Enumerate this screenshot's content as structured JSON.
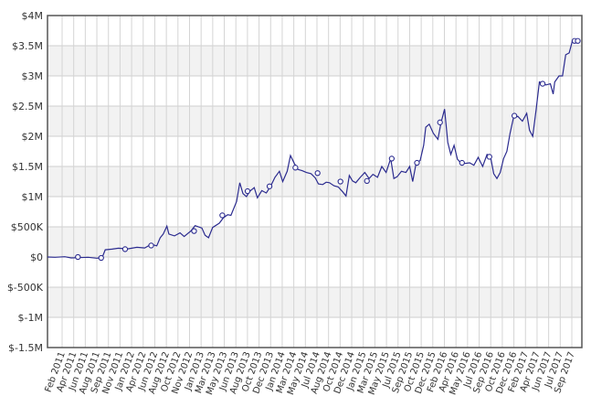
{
  "chart_data": {
    "type": "line",
    "title": "",
    "xlabel": "",
    "ylabel": "",
    "ylim": [
      -1500000,
      4000000
    ],
    "grid": true,
    "legend": "none",
    "y_ticks": [
      {
        "value": 4000000,
        "label": "$4M"
      },
      {
        "value": 3500000,
        "label": "$3.5M"
      },
      {
        "value": 3000000,
        "label": "$3M"
      },
      {
        "value": 2500000,
        "label": "$2.5M"
      },
      {
        "value": 2000000,
        "label": "$2M"
      },
      {
        "value": 1500000,
        "label": "$1.5M"
      },
      {
        "value": 1000000,
        "label": "$1M"
      },
      {
        "value": 500000,
        "label": "$500K"
      },
      {
        "value": 0,
        "label": "$0"
      },
      {
        "value": -500000,
        "label": "$-500K"
      },
      {
        "value": -1000000,
        "label": "$-1M"
      },
      {
        "value": -1500000,
        "label": "$-1.5M"
      }
    ],
    "x_ticks": [
      "Feb 2011",
      "Apr 2011",
      "Jun 2011",
      "Aug 2011",
      "Sep 2011",
      "Nov 2011",
      "Jan 2012",
      "Apr 2012",
      "Jun 2012",
      "Aug 2012",
      "Oct 2012",
      "Nov 2012",
      "Jan 2013",
      "Mar 2013",
      "May 2013",
      "Jun 2013",
      "Aug 2013",
      "Oct 2013",
      "Dec 2013",
      "Jan 2014",
      "Mar 2014",
      "May 2014",
      "Jul 2014",
      "Aug 2014",
      "Oct 2014",
      "Dec 2014",
      "Jan 2015",
      "Mar 2015",
      "May 2015",
      "Jul 2015",
      "Sep 2015",
      "Oct 2015",
      "Dec 2015",
      "Feb 2016",
      "Apr 2016",
      "May 2016",
      "Jul 2016",
      "Sep 2016",
      "Oct 2016",
      "Dec 2016",
      "Feb 2017",
      "Apr 2017",
      "Jun 2017",
      "Jul 2017",
      "Sep 2017"
    ],
    "x_range": [
      "2011-01-25",
      "2017-11-08"
    ],
    "series": [
      {
        "color": "#2b2b8f",
        "points": [
          [
            "2011-01-25",
            0
          ],
          [
            "2011-03-01",
            -5000
          ],
          [
            "2011-04-15",
            5000
          ],
          [
            "2011-05-15",
            -15000
          ],
          [
            "2011-06-20",
            -10000
          ],
          [
            "2011-08-01",
            -5000
          ],
          [
            "2011-09-10",
            -20000
          ],
          [
            "2011-10-05",
            -15000
          ],
          [
            "2011-10-20",
            120000
          ],
          [
            "2011-11-20",
            130000
          ],
          [
            "2011-12-20",
            145000
          ],
          [
            "2012-02-01",
            135000
          ],
          [
            "2012-03-15",
            160000
          ],
          [
            "2012-04-20",
            150000
          ],
          [
            "2012-05-20",
            210000
          ],
          [
            "2012-06-15",
            185000
          ],
          [
            "2012-07-01",
            320000
          ],
          [
            "2012-07-15",
            380000
          ],
          [
            "2012-08-01",
            510000
          ],
          [
            "2012-08-10",
            380000
          ],
          [
            "2012-09-05",
            350000
          ],
          [
            "2012-10-01",
            400000
          ],
          [
            "2012-10-20",
            340000
          ],
          [
            "2012-11-20",
            430000
          ],
          [
            "2012-12-10",
            520000
          ],
          [
            "2013-01-10",
            480000
          ],
          [
            "2013-01-25",
            360000
          ],
          [
            "2013-02-10",
            320000
          ],
          [
            "2013-03-01",
            490000
          ],
          [
            "2013-04-01",
            560000
          ],
          [
            "2013-04-20",
            650000
          ],
          [
            "2013-05-10",
            700000
          ],
          [
            "2013-05-25",
            690000
          ],
          [
            "2013-06-20",
            920000
          ],
          [
            "2013-07-05",
            1230000
          ],
          [
            "2013-07-20",
            1050000
          ],
          [
            "2013-08-05",
            1000000
          ],
          [
            "2013-08-20",
            1090000
          ],
          [
            "2013-09-10",
            1150000
          ],
          [
            "2013-09-25",
            980000
          ],
          [
            "2013-10-15",
            1100000
          ],
          [
            "2013-11-05",
            1060000
          ],
          [
            "2013-11-25",
            1170000
          ],
          [
            "2013-12-15",
            1320000
          ],
          [
            "2014-01-05",
            1420000
          ],
          [
            "2014-01-20",
            1250000
          ],
          [
            "2014-02-10",
            1420000
          ],
          [
            "2014-02-25",
            1680000
          ],
          [
            "2014-03-15",
            1550000
          ],
          [
            "2014-04-01",
            1450000
          ],
          [
            "2014-04-20",
            1430000
          ],
          [
            "2014-05-10",
            1400000
          ],
          [
            "2014-06-01",
            1380000
          ],
          [
            "2014-06-20",
            1310000
          ],
          [
            "2014-07-05",
            1210000
          ],
          [
            "2014-07-25",
            1200000
          ],
          [
            "2014-08-10",
            1240000
          ],
          [
            "2014-08-25",
            1230000
          ],
          [
            "2014-09-15",
            1180000
          ],
          [
            "2014-10-05",
            1160000
          ],
          [
            "2014-10-25",
            1080000
          ],
          [
            "2014-11-10",
            1010000
          ],
          [
            "2014-11-25",
            1350000
          ],
          [
            "2014-12-10",
            1260000
          ],
          [
            "2014-12-25",
            1230000
          ],
          [
            "2015-01-15",
            1320000
          ],
          [
            "2015-02-05",
            1400000
          ],
          [
            "2015-02-25",
            1300000
          ],
          [
            "2015-03-15",
            1370000
          ],
          [
            "2015-04-05",
            1320000
          ],
          [
            "2015-04-25",
            1500000
          ],
          [
            "2015-05-15",
            1400000
          ],
          [
            "2015-06-05",
            1630000
          ],
          [
            "2015-06-20",
            1300000
          ],
          [
            "2015-07-05",
            1330000
          ],
          [
            "2015-07-25",
            1420000
          ],
          [
            "2015-08-15",
            1400000
          ],
          [
            "2015-09-01",
            1500000
          ],
          [
            "2015-09-15",
            1250000
          ],
          [
            "2015-10-01",
            1550000
          ],
          [
            "2015-10-20",
            1600000
          ],
          [
            "2015-11-05",
            1850000
          ],
          [
            "2015-11-15",
            2150000
          ],
          [
            "2015-12-01",
            2200000
          ],
          [
            "2015-12-20",
            2050000
          ],
          [
            "2016-01-10",
            1950000
          ],
          [
            "2016-01-25",
            2230000
          ],
          [
            "2016-02-10",
            2450000
          ],
          [
            "2016-02-25",
            1900000
          ],
          [
            "2016-03-10",
            1700000
          ],
          [
            "2016-03-25",
            1850000
          ],
          [
            "2016-04-10",
            1620000
          ],
          [
            "2016-04-25",
            1560000
          ],
          [
            "2016-05-15",
            1550000
          ],
          [
            "2016-06-05",
            1560000
          ],
          [
            "2016-06-25",
            1520000
          ],
          [
            "2016-07-15",
            1650000
          ],
          [
            "2016-08-05",
            1500000
          ],
          [
            "2016-08-25",
            1700000
          ],
          [
            "2016-09-10",
            1670000
          ],
          [
            "2016-09-25",
            1380000
          ],
          [
            "2016-10-10",
            1300000
          ],
          [
            "2016-10-25",
            1400000
          ],
          [
            "2016-11-10",
            1630000
          ],
          [
            "2016-11-25",
            1750000
          ],
          [
            "2016-12-10",
            2050000
          ],
          [
            "2016-12-25",
            2300000
          ],
          [
            "2017-01-15",
            2330000
          ],
          [
            "2017-02-05",
            2250000
          ],
          [
            "2017-02-25",
            2380000
          ],
          [
            "2017-03-10",
            2100000
          ],
          [
            "2017-03-25",
            2000000
          ],
          [
            "2017-04-10",
            2450000
          ],
          [
            "2017-04-25",
            2900000
          ],
          [
            "2017-05-10",
            2880000
          ],
          [
            "2017-05-25",
            2850000
          ],
          [
            "2017-06-15",
            2870000
          ],
          [
            "2017-06-28",
            2700000
          ],
          [
            "2017-07-05",
            2900000
          ],
          [
            "2017-07-25",
            3000000
          ],
          [
            "2017-08-10",
            3000000
          ],
          [
            "2017-08-25",
            3350000
          ],
          [
            "2017-09-10",
            3380000
          ],
          [
            "2017-09-25",
            3580000
          ],
          [
            "2017-10-15",
            3580000
          ]
        ],
        "markers": [
          [
            "2011-06-15",
            0
          ],
          [
            "2011-10-01",
            -15000
          ],
          [
            "2012-01-20",
            130000
          ],
          [
            "2012-05-20",
            190000
          ],
          [
            "2012-12-05",
            430000
          ],
          [
            "2013-04-15",
            690000
          ],
          [
            "2013-08-10",
            1090000
          ],
          [
            "2013-11-20",
            1170000
          ],
          [
            "2014-03-20",
            1480000
          ],
          [
            "2014-07-01",
            1390000
          ],
          [
            "2014-10-15",
            1250000
          ],
          [
            "2015-02-15",
            1260000
          ],
          [
            "2015-06-10",
            1630000
          ],
          [
            "2015-10-05",
            1560000
          ],
          [
            "2016-01-20",
            2230000
          ],
          [
            "2016-05-01",
            1560000
          ],
          [
            "2016-09-05",
            1660000
          ],
          [
            "2016-12-30",
            2340000
          ],
          [
            "2017-05-10",
            2870000
          ],
          [
            "2017-10-05",
            3580000
          ],
          [
            "2017-10-20",
            3580000
          ]
        ]
      }
    ]
  }
}
